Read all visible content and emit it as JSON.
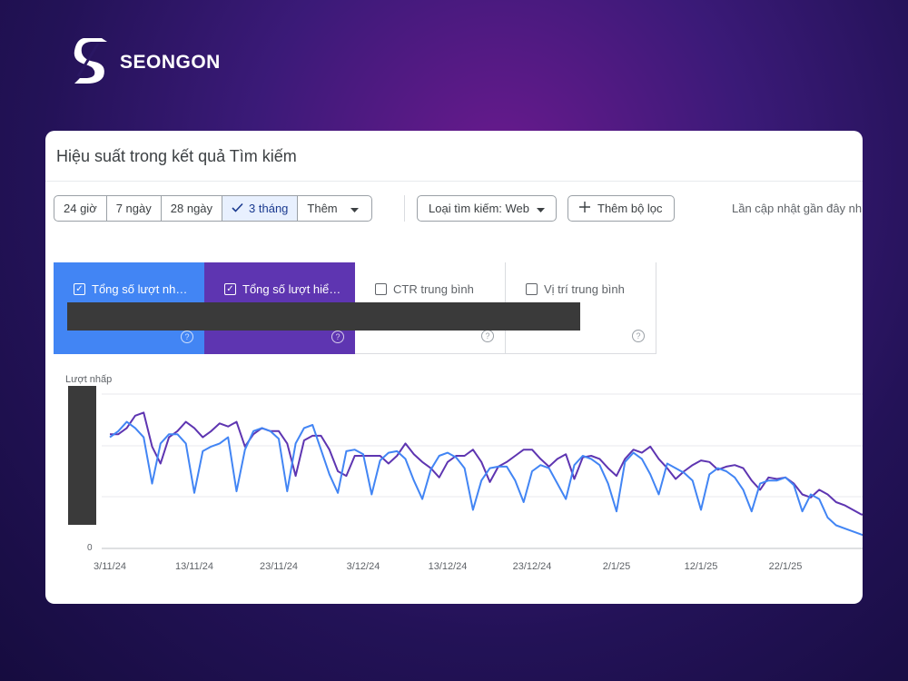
{
  "brand": {
    "name": "SEONGON",
    "logo_icon": "seongon-s-icon"
  },
  "header": {
    "title": "Hiệu suất trong kết quả Tìm kiếm"
  },
  "date_range": {
    "options": [
      "24 giờ",
      "7 ngày",
      "28 ngày",
      "3 tháng"
    ],
    "selected": "3 tháng",
    "more_label": "Thêm"
  },
  "filters": {
    "search_type_label": "Loại tìm kiếm: Web",
    "add_filter_label": "Thêm bộ lọc"
  },
  "last_update_label": "Lần cập nhật gần đây nh",
  "metrics": [
    {
      "label": "Tổng số lượt nh…",
      "checked": true,
      "color": "#4285f4"
    },
    {
      "label": "Tổng số lượt hiể…",
      "checked": true,
      "color": "#5e35b1"
    },
    {
      "label": "CTR trung bình",
      "checked": false
    },
    {
      "label": "Vị trí trung bình",
      "checked": false
    }
  ],
  "chart_data": {
    "type": "line",
    "ylabel": "Lượt nhấp",
    "y_tick_visible": "0",
    "x_tick_labels": [
      "3/11/24",
      "13/11/24",
      "23/11/24",
      "3/12/24",
      "13/12/24",
      "23/12/24",
      "2/1/25",
      "12/1/25",
      "22/1/25"
    ],
    "x_start_date": "2024-11-03",
    "grid": true,
    "series": [
      {
        "color": "#4285f4",
        "values": [
          0.72,
          0.76,
          0.82,
          0.78,
          0.72,
          0.42,
          0.68,
          0.74,
          0.74,
          0.68,
          0.36,
          0.63,
          0.66,
          0.68,
          0.72,
          0.37,
          0.64,
          0.76,
          0.78,
          0.76,
          0.71,
          0.37,
          0.68,
          0.78,
          0.8,
          0.64,
          0.48,
          0.36,
          0.63,
          0.64,
          0.61,
          0.35,
          0.57,
          0.62,
          0.63,
          0.58,
          0.44,
          0.32,
          0.51,
          0.6,
          0.62,
          0.59,
          0.52,
          0.25,
          0.44,
          0.52,
          0.53,
          0.53,
          0.44,
          0.3,
          0.5,
          0.54,
          0.52,
          0.42,
          0.32,
          0.54,
          0.6,
          0.58,
          0.54,
          0.42,
          0.24,
          0.56,
          0.62,
          0.58,
          0.48,
          0.35,
          0.55,
          0.52,
          0.49,
          0.44,
          0.25,
          0.48,
          0.52,
          0.5,
          0.46,
          0.38,
          0.24,
          0.42,
          0.44,
          0.44,
          0.46,
          0.41,
          0.24,
          0.35,
          0.32,
          0.2,
          0.15,
          0.13,
          0.11,
          0.09,
          0.07
        ]
      },
      {
        "color": "#5e35b1",
        "values": [
          0.74,
          0.74,
          0.78,
          0.86,
          0.88,
          0.66,
          0.55,
          0.72,
          0.76,
          0.82,
          0.78,
          0.72,
          0.76,
          0.81,
          0.79,
          0.82,
          0.66,
          0.74,
          0.78,
          0.76,
          0.76,
          0.68,
          0.47,
          0.7,
          0.73,
          0.73,
          0.64,
          0.5,
          0.47,
          0.6,
          0.6,
          0.6,
          0.6,
          0.55,
          0.6,
          0.68,
          0.61,
          0.56,
          0.52,
          0.46,
          0.56,
          0.6,
          0.6,
          0.64,
          0.56,
          0.43,
          0.53,
          0.56,
          0.6,
          0.64,
          0.64,
          0.58,
          0.53,
          0.58,
          0.61,
          0.45,
          0.59,
          0.6,
          0.58,
          0.52,
          0.47,
          0.58,
          0.64,
          0.62,
          0.66,
          0.58,
          0.52,
          0.45,
          0.5,
          0.54,
          0.57,
          0.56,
          0.51,
          0.53,
          0.54,
          0.52,
          0.44,
          0.38,
          0.46,
          0.45,
          0.46,
          0.42,
          0.35,
          0.33,
          0.38,
          0.35,
          0.3,
          0.28,
          0.25,
          0.22,
          0.22
        ]
      }
    ]
  }
}
